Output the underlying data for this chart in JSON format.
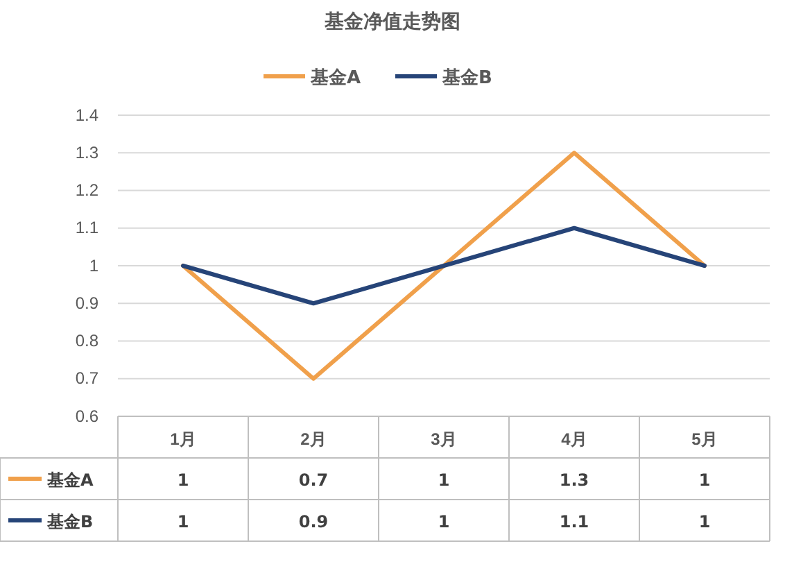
{
  "chart_data": {
    "type": "line",
    "title": "基金净值走势图",
    "categories": [
      "1月",
      "2月",
      "3月",
      "4月",
      "5月"
    ],
    "series": [
      {
        "name": "基金A",
        "color": "#f0a04b",
        "values": [
          1,
          0.7,
          1,
          1.3,
          1
        ]
      },
      {
        "name": "基金B",
        "color": "#264478",
        "values": [
          1,
          0.9,
          1,
          1.1,
          1
        ]
      }
    ],
    "ylim": [
      0.6,
      1.4
    ],
    "yticks": [
      0.6,
      0.7,
      0.8,
      0.9,
      1,
      1.1,
      1.2,
      1.3,
      1.4
    ],
    "grid": "y",
    "legend": "top",
    "data_labels": true
  }
}
